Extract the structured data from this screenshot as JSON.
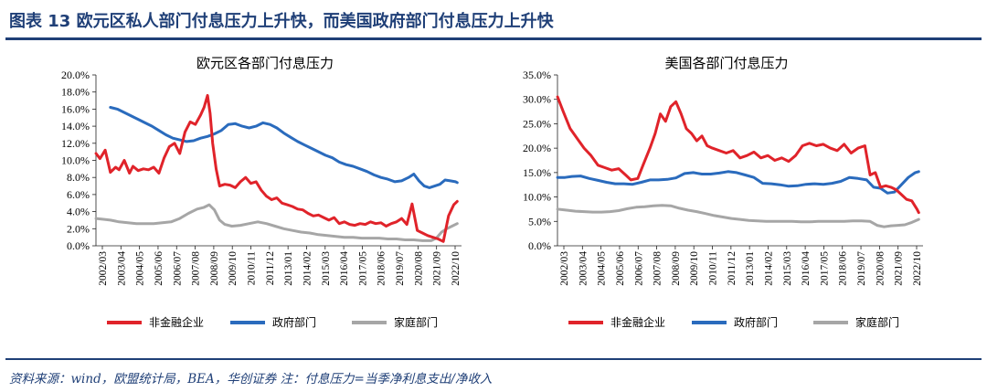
{
  "header": {
    "title": "图表 13    欧元区私人部门付息压力上升快，而美国政府部门付息压力上升快"
  },
  "footer": {
    "source": "资料来源：wind，欧盟统计局，BEA，华创证券   注：付息压力=当季净利息支出/净收入"
  },
  "colors": {
    "nonfinancial": "#e0232a",
    "government": "#2a6bbd",
    "household": "#a6a6a6",
    "rule": "#1f3f77"
  },
  "chart_data": [
    {
      "type": "line",
      "title": "欧元区各部门付息压力",
      "xlabel": "",
      "ylabel": "",
      "ylim": [
        0,
        20
      ],
      "y_ticks": [
        "0.0%",
        "2.0%",
        "4.0%",
        "6.0%",
        "8.0%",
        "10.0%",
        "12.0%",
        "14.0%",
        "16.0%",
        "18.0%",
        "20.0%"
      ],
      "x_ticks": [
        "2002/03",
        "2003/04",
        "2004/05",
        "2005/06",
        "2006/07",
        "2007/08",
        "2008/09",
        "2009/10",
        "2010/11",
        "2011/12",
        "2013/01",
        "2014/02",
        "2015/03",
        "2016/04",
        "2017/05",
        "2018/06",
        "2019/07",
        "2020/08",
        "2021/09",
        "2022/10"
      ],
      "x_range": [
        2002.167,
        2023.25
      ],
      "legend": [
        "非金融企业",
        "政府部门",
        "家庭部门"
      ],
      "series": [
        {
          "name": "非金融企业",
          "color_key": "nonfinancial",
          "x": [
            2002.17,
            2002.4,
            2002.7,
            2003.0,
            2003.3,
            2003.5,
            2003.8,
            2004.1,
            2004.3,
            2004.6,
            2004.9,
            2005.2,
            2005.5,
            2005.8,
            2006.1,
            2006.4,
            2006.7,
            2007.0,
            2007.3,
            2007.6,
            2007.9,
            2008.2,
            2008.4,
            2008.6,
            2008.75,
            2008.9,
            2009.1,
            2009.3,
            2009.6,
            2009.9,
            2010.2,
            2010.5,
            2010.8,
            2011.1,
            2011.4,
            2011.7,
            2012.0,
            2012.3,
            2012.6,
            2012.9,
            2013.2,
            2013.5,
            2013.8,
            2014.1,
            2014.4,
            2014.7,
            2015.0,
            2015.3,
            2015.6,
            2015.9,
            2016.2,
            2016.5,
            2016.8,
            2017.1,
            2017.4,
            2017.7,
            2018.0,
            2018.3,
            2018.6,
            2018.9,
            2019.2,
            2019.5,
            2019.8,
            2020.1,
            2020.4,
            2020.7,
            2021.0,
            2021.3,
            2021.6,
            2021.9,
            2022.2,
            2022.5,
            2022.8,
            2023.0
          ],
          "values": [
            10.8,
            10.2,
            11.2,
            8.6,
            9.2,
            8.9,
            10.0,
            8.5,
            9.3,
            8.8,
            9.0,
            8.9,
            9.2,
            8.5,
            10.3,
            11.6,
            12.0,
            10.8,
            13.3,
            14.5,
            14.2,
            15.3,
            16.2,
            17.6,
            15.5,
            12.0,
            9.0,
            7.0,
            7.2,
            7.1,
            6.8,
            7.5,
            8.0,
            7.3,
            7.5,
            6.5,
            5.8,
            5.4,
            5.6,
            5.0,
            4.8,
            4.6,
            4.3,
            4.2,
            3.8,
            3.5,
            3.6,
            3.3,
            3.0,
            3.3,
            2.6,
            2.8,
            2.5,
            2.4,
            2.6,
            2.5,
            2.8,
            2.6,
            2.7,
            2.3,
            2.6,
            2.8,
            3.2,
            2.5,
            4.9,
            1.8,
            1.5,
            1.2,
            1.0,
            0.8,
            0.5,
            3.5,
            4.8,
            5.2
          ]
        },
        {
          "name": "政府部门",
          "color_key": "government",
          "x": [
            2003.0,
            2003.4,
            2003.8,
            2004.2,
            2004.6,
            2005.0,
            2005.4,
            2005.8,
            2006.2,
            2006.6,
            2007.0,
            2007.4,
            2007.8,
            2008.2,
            2008.6,
            2009.0,
            2009.4,
            2009.8,
            2010.2,
            2010.6,
            2011.0,
            2011.4,
            2011.8,
            2012.2,
            2012.6,
            2013.0,
            2013.4,
            2013.8,
            2014.2,
            2014.6,
            2015.0,
            2015.4,
            2015.8,
            2016.2,
            2016.6,
            2017.0,
            2017.4,
            2017.8,
            2018.2,
            2018.6,
            2019.0,
            2019.4,
            2019.8,
            2020.2,
            2020.5,
            2020.8,
            2021.1,
            2021.4,
            2021.7,
            2022.0,
            2022.3,
            2022.6,
            2022.9,
            2023.0
          ],
          "values": [
            16.2,
            16.0,
            15.6,
            15.2,
            14.8,
            14.4,
            14.0,
            13.5,
            13.0,
            12.6,
            12.4,
            12.2,
            12.3,
            12.6,
            12.8,
            13.1,
            13.5,
            14.2,
            14.3,
            14.0,
            13.8,
            14.0,
            14.4,
            14.2,
            13.8,
            13.2,
            12.7,
            12.2,
            11.8,
            11.4,
            11.0,
            10.6,
            10.3,
            9.8,
            9.5,
            9.3,
            9.0,
            8.7,
            8.3,
            8.0,
            7.8,
            7.5,
            7.6,
            8.0,
            8.4,
            7.6,
            7.0,
            6.8,
            7.0,
            7.2,
            7.7,
            7.6,
            7.5,
            7.4
          ]
        },
        {
          "name": "家庭部门",
          "color_key": "household",
          "x": [
            2002.17,
            2002.6,
            2003.0,
            2003.5,
            2004.0,
            2004.5,
            2005.0,
            2005.5,
            2006.0,
            2006.5,
            2007.0,
            2007.5,
            2008.0,
            2008.4,
            2008.7,
            2009.0,
            2009.3,
            2009.6,
            2010.0,
            2010.5,
            2011.0,
            2011.5,
            2012.0,
            2012.5,
            2013.0,
            2013.5,
            2014.0,
            2014.5,
            2015.0,
            2015.5,
            2016.0,
            2016.5,
            2017.0,
            2017.5,
            2018.0,
            2018.5,
            2019.0,
            2019.5,
            2020.0,
            2020.5,
            2021.0,
            2021.5,
            2021.8,
            2022.1,
            2022.4,
            2022.7,
            2023.0
          ],
          "values": [
            3.2,
            3.1,
            3.0,
            2.8,
            2.7,
            2.6,
            2.6,
            2.6,
            2.7,
            2.8,
            3.2,
            3.8,
            4.3,
            4.5,
            4.8,
            4.2,
            3.0,
            2.5,
            2.3,
            2.4,
            2.6,
            2.8,
            2.6,
            2.3,
            2.0,
            1.8,
            1.6,
            1.5,
            1.3,
            1.2,
            1.1,
            1.0,
            1.0,
            0.9,
            0.9,
            0.9,
            0.8,
            0.8,
            0.7,
            0.7,
            0.6,
            0.6,
            0.9,
            1.6,
            2.0,
            2.3,
            2.6
          ]
        }
      ]
    },
    {
      "type": "line",
      "title": "美国各部门付息压力",
      "xlabel": "",
      "ylabel": "",
      "ylim": [
        0,
        35
      ],
      "y_ticks": [
        "0.0%",
        "5.0%",
        "10.0%",
        "15.0%",
        "20.0%",
        "25.0%",
        "30.0%",
        "35.0%"
      ],
      "x_ticks": [
        "2002/03",
        "2003/04",
        "2004/05",
        "2005/06",
        "2006/07",
        "2007/08",
        "2008/09",
        "2009/10",
        "2010/11",
        "2011/12",
        "2013/01",
        "2014/02",
        "2015/03",
        "2016/04",
        "2017/05",
        "2018/06",
        "2019/07",
        "2020/08",
        "2021/09",
        "2022/10"
      ],
      "x_range": [
        2002.167,
        2023.25
      ],
      "legend": [
        "非金融企业",
        "政府部门",
        "家庭部门"
      ],
      "series": [
        {
          "name": "非金融企业",
          "color_key": "nonfinancial",
          "x": [
            2002.17,
            2002.5,
            2002.9,
            2003.3,
            2003.7,
            2004.1,
            2004.5,
            2004.9,
            2005.3,
            2005.7,
            2006.1,
            2006.4,
            2006.8,
            2007.1,
            2007.5,
            2007.8,
            2008.1,
            2008.4,
            2008.7,
            2009.0,
            2009.3,
            2009.6,
            2009.9,
            2010.2,
            2010.5,
            2010.8,
            2011.1,
            2011.5,
            2011.9,
            2012.3,
            2012.7,
            2013.1,
            2013.5,
            2013.9,
            2014.3,
            2014.7,
            2015.1,
            2015.5,
            2015.9,
            2016.3,
            2016.7,
            2017.1,
            2017.5,
            2017.9,
            2018.3,
            2018.7,
            2019.1,
            2019.5,
            2019.9,
            2020.2,
            2020.5,
            2020.8,
            2021.1,
            2021.4,
            2021.7,
            2022.0,
            2022.3,
            2022.6,
            2022.9,
            2023.0
          ],
          "values": [
            30.5,
            27.5,
            24.0,
            22.0,
            20.0,
            18.5,
            16.5,
            16.0,
            15.5,
            15.8,
            14.5,
            13.5,
            13.8,
            16.5,
            20.0,
            23.0,
            27.0,
            25.5,
            28.5,
            29.5,
            27.0,
            24.0,
            23.0,
            21.5,
            22.5,
            20.5,
            20.0,
            19.5,
            19.0,
            19.5,
            18.0,
            18.5,
            19.2,
            18.0,
            18.5,
            17.5,
            18.0,
            17.3,
            18.5,
            20.5,
            21.0,
            20.5,
            20.8,
            20.0,
            19.5,
            20.8,
            19.0,
            20.0,
            20.5,
            14.5,
            15.0,
            12.0,
            12.3,
            12.0,
            11.5,
            10.5,
            9.5,
            9.2,
            7.5,
            6.8
          ]
        },
        {
          "name": "政府部门",
          "color_key": "government",
          "x": [
            2002.17,
            2002.6,
            2003.0,
            2003.5,
            2004.0,
            2004.5,
            2005.0,
            2005.5,
            2006.0,
            2006.5,
            2007.0,
            2007.5,
            2008.0,
            2008.5,
            2009.0,
            2009.5,
            2010.0,
            2010.5,
            2011.0,
            2011.5,
            2012.0,
            2012.5,
            2013.0,
            2013.5,
            2014.0,
            2014.5,
            2015.0,
            2015.5,
            2016.0,
            2016.5,
            2017.0,
            2017.5,
            2018.0,
            2018.5,
            2019.0,
            2019.5,
            2020.0,
            2020.4,
            2020.8,
            2021.2,
            2021.6,
            2022.0,
            2022.4,
            2022.8,
            2023.0
          ],
          "values": [
            14.0,
            14.0,
            14.2,
            14.3,
            13.8,
            13.4,
            13.0,
            12.7,
            12.7,
            12.6,
            13.0,
            13.5,
            13.5,
            13.6,
            13.9,
            14.8,
            15.0,
            14.7,
            14.7,
            14.9,
            15.2,
            15.0,
            14.5,
            14.0,
            12.8,
            12.7,
            12.5,
            12.2,
            12.3,
            12.6,
            12.7,
            12.6,
            12.8,
            13.2,
            14.0,
            13.8,
            13.5,
            12.0,
            11.8,
            10.8,
            11.0,
            12.5,
            14.0,
            15.0,
            15.2
          ]
        },
        {
          "name": "家庭部门",
          "color_key": "household",
          "x": [
            2002.17,
            2002.7,
            2003.2,
            2003.7,
            2004.2,
            2004.7,
            2005.2,
            2005.7,
            2006.2,
            2006.7,
            2007.2,
            2007.7,
            2008.2,
            2008.7,
            2009.2,
            2009.7,
            2010.2,
            2010.7,
            2011.2,
            2011.7,
            2012.2,
            2012.7,
            2013.2,
            2013.7,
            2014.2,
            2014.7,
            2015.2,
            2015.7,
            2016.2,
            2016.7,
            2017.2,
            2017.7,
            2018.2,
            2018.7,
            2019.2,
            2019.7,
            2020.2,
            2020.6,
            2021.0,
            2021.4,
            2021.8,
            2022.2,
            2022.6,
            2023.0
          ],
          "values": [
            7.5,
            7.3,
            7.1,
            7.0,
            6.9,
            6.9,
            7.0,
            7.2,
            7.6,
            7.9,
            8.0,
            8.2,
            8.3,
            8.2,
            7.7,
            7.3,
            7.0,
            6.6,
            6.2,
            5.9,
            5.6,
            5.4,
            5.2,
            5.1,
            5.0,
            5.0,
            5.0,
            5.0,
            4.9,
            4.9,
            5.0,
            5.0,
            5.0,
            5.0,
            5.1,
            5.1,
            5.0,
            4.2,
            3.9,
            4.1,
            4.2,
            4.3,
            4.8,
            5.4
          ]
        }
      ]
    }
  ]
}
